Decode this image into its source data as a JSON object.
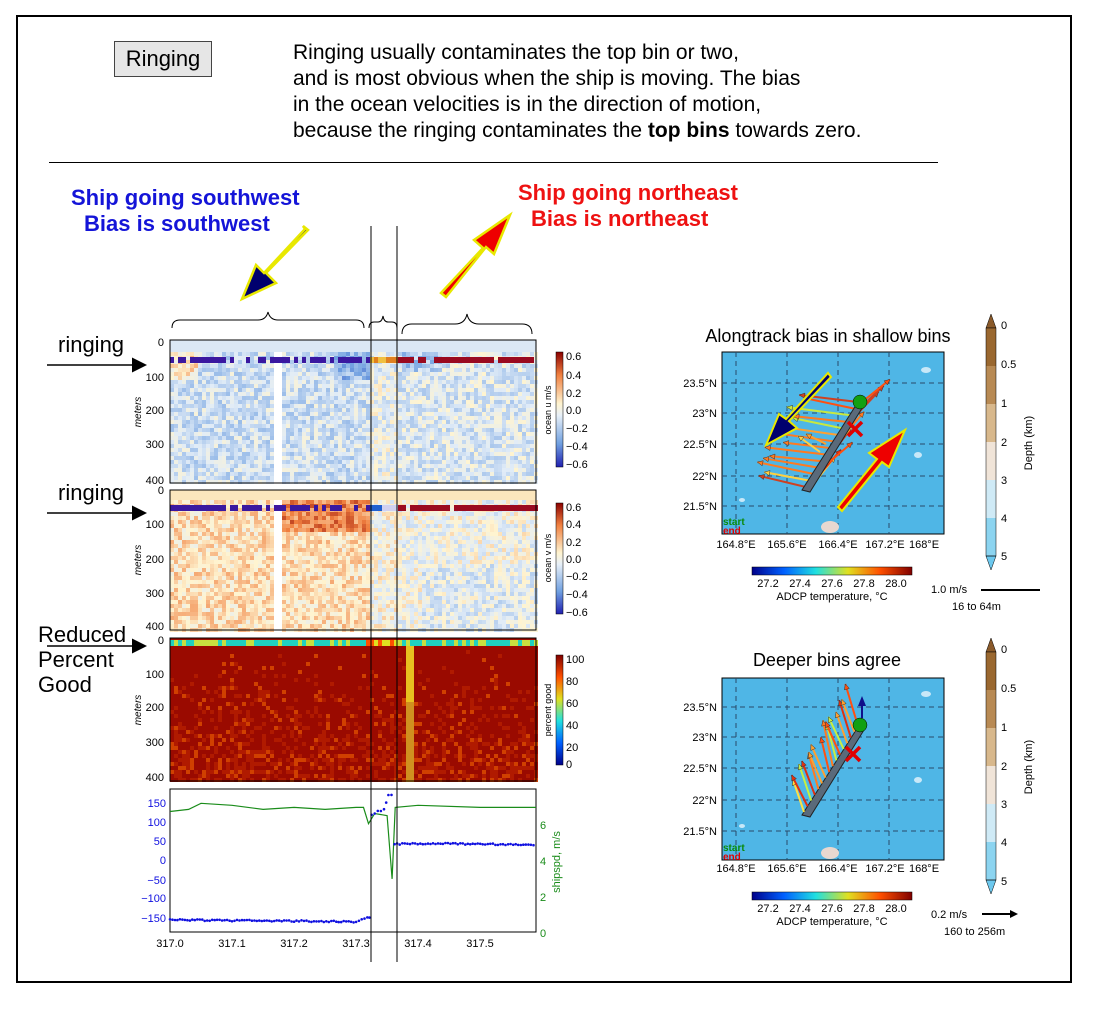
{
  "header": {
    "button_label": "Ringing",
    "intro_line1": "Ringing usually contaminates the top bin or two,",
    "intro_line2": "and is most obvious when the ship is moving.  The bias",
    "intro_line3": "in the ocean velocities is in the direction of motion,",
    "intro_line4a": "because the ringing contaminates the ",
    "intro_line4b": "top bins",
    "intro_line4c": " towards zero."
  },
  "annotations": {
    "sw_line1": "Ship going southwest",
    "sw_line2": "Bias is southwest",
    "ne_line1": "Ship going northeast",
    "ne_line2": "Bias is northeast",
    "ringing1": "ringing",
    "ringing2": "ringing",
    "reduced1": "Reduced",
    "reduced2": "Percent",
    "reduced3": "Good"
  },
  "colors": {
    "sw_text": "#1414d8",
    "ne_text": "#ee1111",
    "navy_arrow": "#00006e",
    "red_arrow": "#ee0000",
    "arrow_outline": "#e8e800",
    "ocean_bg": "#4fb6e6",
    "speed_line": "#1a8c1a",
    "heading_dots": "#1010e0"
  },
  "chart_data": [
    {
      "type": "heatmap",
      "panel": "ocean u",
      "ylabel": "meters",
      "yticks": [
        "0",
        "100",
        "200",
        "300",
        "400"
      ],
      "ylim": [
        400,
        0
      ],
      "colorbar_label": "ocean u m/s",
      "colorbar_ticks": [
        "0.6",
        "0.4",
        "0.2",
        "0.0",
        "−0.2",
        "−0.4",
        "−0.6"
      ],
      "clim": [
        -0.6,
        0.6
      ]
    },
    {
      "type": "heatmap",
      "panel": "ocean v",
      "ylabel": "meters",
      "yticks": [
        "0",
        "100",
        "200",
        "300",
        "400"
      ],
      "ylim": [
        400,
        0
      ],
      "colorbar_label": "ocean v m/s",
      "colorbar_ticks": [
        "0.6",
        "0.4",
        "0.2",
        "0.0",
        "−0.2",
        "−0.4",
        "−0.6"
      ],
      "clim": [
        -0.6,
        0.6
      ]
    },
    {
      "type": "heatmap",
      "panel": "percent good",
      "ylabel": "meters",
      "yticks": [
        "0",
        "100",
        "200",
        "300",
        "400"
      ],
      "ylim": [
        400,
        0
      ],
      "colorbar_label": "percent good",
      "colorbar_ticks": [
        "100",
        "80",
        "60",
        "40",
        "20",
        "0"
      ],
      "clim": [
        0,
        100
      ]
    },
    {
      "type": "line",
      "panel": "heading and ship speed",
      "xticks": [
        "317.0",
        "317.1",
        "317.2",
        "317.3",
        "317.4",
        "317.5"
      ],
      "xlim": [
        317.0,
        317.59
      ],
      "yticks_left": [
        "150",
        "100",
        "50",
        "0",
        "−50",
        "−100",
        "−150"
      ],
      "ylim_left": [
        -175,
        175
      ],
      "yticks_right": [
        "6",
        "4",
        "2",
        "0"
      ],
      "ylim_right": [
        0,
        7
      ],
      "ylabel_right": "shipspd, m/s",
      "series": [
        {
          "axis": "left",
          "x": [
            317.0,
            317.1,
            317.2,
            317.3,
            317.318,
            317.325,
            317.335,
            317.345,
            317.352,
            317.362,
            317.42,
            317.5,
            317.59
          ],
          "y": [
            -145,
            -147,
            -148,
            -150,
            -140,
            110,
            120,
            125,
            160,
            40,
            42,
            40,
            39
          ]
        },
        {
          "axis": "right",
          "x": [
            317.0,
            317.03,
            317.05,
            317.1,
            317.15,
            317.2,
            317.25,
            317.3,
            317.312,
            317.32,
            317.33,
            317.35,
            317.358,
            317.363,
            317.4,
            317.5,
            317.59
          ],
          "y": [
            5.9,
            6.0,
            6.3,
            6.2,
            6.0,
            6.1,
            6.0,
            6.1,
            6.1,
            5.3,
            5.8,
            5.7,
            2.6,
            6.1,
            6.2,
            6.1,
            6.1
          ]
        }
      ]
    },
    {
      "type": "scatter",
      "panel": "map shallow",
      "title": "Alongtrack bias in shallow bins",
      "xticks": [
        "164.8°E",
        "165.6°E",
        "166.4°E",
        "167.2°E",
        "168°E"
      ],
      "yticks": [
        "23.5°N",
        "23°N",
        "22.5°N",
        "22°N",
        "21.5°N"
      ],
      "start_label": "start",
      "end_label": "end",
      "temp_ticks": [
        "27.2",
        "27.4",
        "27.6",
        "27.8",
        "28.0"
      ],
      "temp_label": "ADCP temperature, °C",
      "depth_ticks": [
        "0",
        "0.5",
        "1",
        "2",
        "3",
        "4",
        "5"
      ],
      "depth_label": "Depth (km)",
      "scale_speed": "1.0 m/s",
      "scale_range": "16 to 64m"
    },
    {
      "type": "scatter",
      "panel": "map deep",
      "title": "Deeper bins agree",
      "xticks": [
        "164.8°E",
        "165.6°E",
        "166.4°E",
        "167.2°E",
        "168°E"
      ],
      "yticks": [
        "23.5°N",
        "23°N",
        "22.5°N",
        "22°N",
        "21.5°N"
      ],
      "start_label": "start",
      "end_label": "end",
      "temp_ticks": [
        "27.2",
        "27.4",
        "27.6",
        "27.8",
        "28.0"
      ],
      "temp_label": "ADCP temperature, °C",
      "depth_ticks": [
        "0",
        "0.5",
        "1",
        "2",
        "3",
        "4",
        "5"
      ],
      "depth_label": "Depth (km)",
      "scale_speed": "0.2 m/s",
      "scale_range": "160 to 256m"
    }
  ]
}
